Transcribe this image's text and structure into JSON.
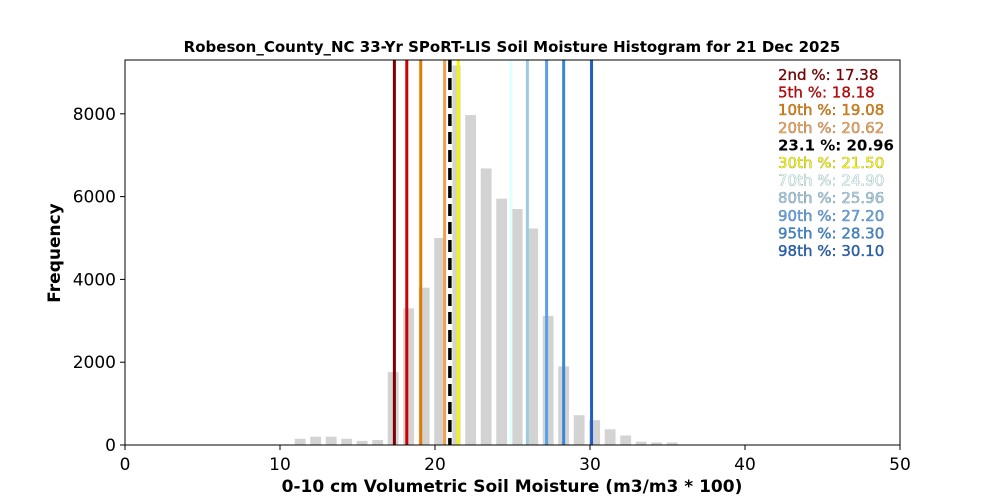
{
  "chart_data": {
    "type": "bar",
    "title": "Robeson_County_NC 33-Yr SPoRT-LIS Soil Moisture Histogram for 21 Dec 2025",
    "xlabel": "0-10 cm Volumetric Soil Moisture (m3/m3 * 100)",
    "ylabel": "Frequency",
    "xlim": [
      0,
      50
    ],
    "ylim": [
      0,
      9300
    ],
    "xticks": [
      0,
      10,
      20,
      30,
      40,
      50
    ],
    "yticks": [
      0,
      2000,
      4000,
      6000,
      8000
    ],
    "grid": false,
    "bar_color": "#d3d3d3",
    "bars": [
      {
        "x": 11.3,
        "value": 150
      },
      {
        "x": 12.3,
        "value": 200
      },
      {
        "x": 13.3,
        "value": 200
      },
      {
        "x": 14.3,
        "value": 150
      },
      {
        "x": 15.3,
        "value": 100
      },
      {
        "x": 16.3,
        "value": 120
      },
      {
        "x": 17.3,
        "value": 1760
      },
      {
        "x": 18.3,
        "value": 3300
      },
      {
        "x": 19.3,
        "value": 3800
      },
      {
        "x": 20.3,
        "value": 5000
      },
      {
        "x": 21.3,
        "value": 9170
      },
      {
        "x": 22.3,
        "value": 7970
      },
      {
        "x": 23.3,
        "value": 6680
      },
      {
        "x": 24.3,
        "value": 5950
      },
      {
        "x": 25.3,
        "value": 5700
      },
      {
        "x": 26.3,
        "value": 5230
      },
      {
        "x": 27.3,
        "value": 3120
      },
      {
        "x": 28.3,
        "value": 1900
      },
      {
        "x": 29.3,
        "value": 720
      },
      {
        "x": 30.3,
        "value": 600
      },
      {
        "x": 31.3,
        "value": 380
      },
      {
        "x": 32.3,
        "value": 230
      },
      {
        "x": 33.3,
        "value": 80
      },
      {
        "x": 34.3,
        "value": 60
      },
      {
        "x": 35.3,
        "value": 60
      }
    ],
    "percentiles": [
      {
        "label": "2nd %: 17.38",
        "value": 17.38,
        "color": "#800000",
        "dashed": false,
        "bold": false
      },
      {
        "label": "5th %: 18.18",
        "value": 18.18,
        "color": "#cc0000",
        "dashed": false,
        "bold": false
      },
      {
        "label": "10th %: 19.08",
        "value": 19.08,
        "color": "#e07b00",
        "dashed": false,
        "bold": false
      },
      {
        "label": "20th %: 20.62",
        "value": 20.62,
        "color": "#f0a050",
        "dashed": false,
        "bold": false
      },
      {
        "label": "23.1 %: 20.96",
        "value": 20.96,
        "color": "#000000",
        "dashed": true,
        "bold": true
      },
      {
        "label": "30th %: 21.50",
        "value": 21.5,
        "color": "#f5f500",
        "dashed": false,
        "bold": false
      },
      {
        "label": "70th %: 24.90",
        "value": 24.9,
        "color": "#e0ffff",
        "dashed": false,
        "bold": false
      },
      {
        "label": "80th %: 25.96",
        "value": 25.96,
        "color": "#9ecae1",
        "dashed": false,
        "bold": false
      },
      {
        "label": "90th %: 27.20",
        "value": 27.2,
        "color": "#5aa0e6",
        "dashed": false,
        "bold": false
      },
      {
        "label": "95th %: 28.30",
        "value": 28.3,
        "color": "#3a87d6",
        "dashed": false,
        "bold": false
      },
      {
        "label": "98th %: 30.10",
        "value": 30.1,
        "color": "#1f5fbf",
        "dashed": false,
        "bold": false
      }
    ]
  }
}
